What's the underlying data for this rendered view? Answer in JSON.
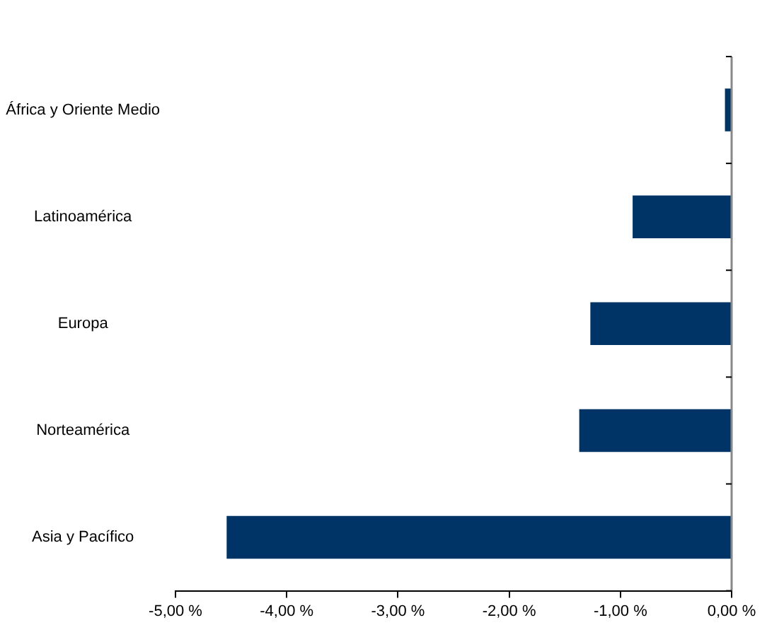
{
  "chart_data": {
    "type": "bar",
    "orientation": "horizontal",
    "categories": [
      "África y Oriente Medio",
      "Latinoamérica",
      "Europa",
      "Norteamérica",
      "Asia y Pacífico"
    ],
    "values": [
      -0.06,
      -0.89,
      -1.27,
      -1.37,
      -4.54
    ],
    "color": "#003366",
    "xlim": [
      -5,
      0
    ],
    "xticks": [
      {
        "value": -5,
        "label": "-5,00 %"
      },
      {
        "value": -4,
        "label": "-4,00 %"
      },
      {
        "value": -3,
        "label": "-3,00 %"
      },
      {
        "value": -2,
        "label": "-2,00 %"
      },
      {
        "value": -1,
        "label": "-1,00 %"
      },
      {
        "value": 0,
        "label": "0,00 %"
      }
    ],
    "grid": false,
    "legend": false
  }
}
